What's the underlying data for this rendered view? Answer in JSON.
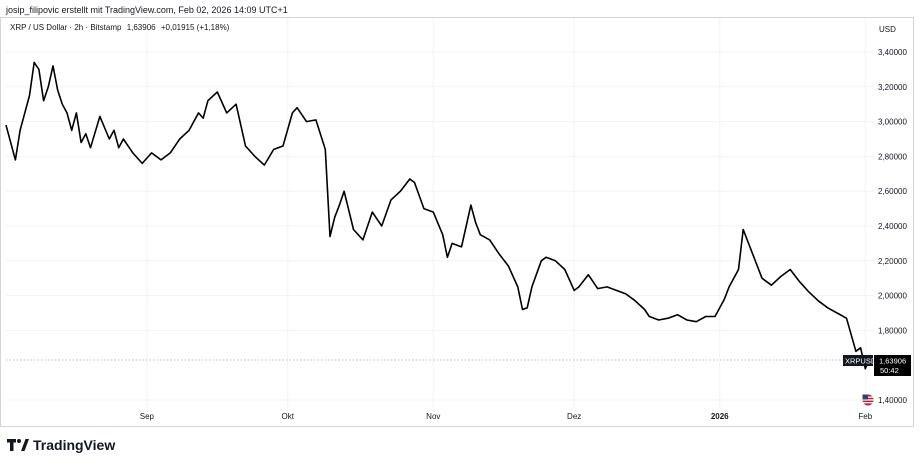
{
  "header": {
    "attribution": "josip_filipovic erstellt mit TradingView.com, Feb 02, 2026 14:09 UTC+1"
  },
  "legend": {
    "symbol": "XRP / US Dollar · 2h · Bitstamp",
    "last": "1,63906",
    "change": "+0,01915 (+1,18%)"
  },
  "price_axis": {
    "currency": "USD"
  },
  "price_tag": {
    "symbol": "XRPUSD",
    "price": "1,63906",
    "countdown": "50:42"
  },
  "branding": {
    "name": "TradingView"
  },
  "colors": {
    "line": "#000000",
    "tag_bg": "#131722",
    "grid": "#f0f3fa",
    "text": "#131722"
  },
  "chart_data": {
    "type": "line",
    "title": "",
    "xlabel": "",
    "ylabel": "",
    "ylim": [
      1.4,
      3.5
    ],
    "y_ticks": [
      "1,40000",
      "1,80000",
      "2,00000",
      "2,20000",
      "2,40000",
      "2,60000",
      "2,80000",
      "3,00000",
      "3,20000",
      "3,40000"
    ],
    "y_tick_values": [
      1.4,
      1.8,
      2.0,
      2.2,
      2.4,
      2.6,
      2.8,
      3.0,
      3.2,
      3.4
    ],
    "x_ticks": [
      "Sep",
      "Okt",
      "Nov",
      "Dez",
      "2026",
      "Feb"
    ],
    "x_tick_dates": [
      "2025-09-01",
      "2025-10-01",
      "2025-11-01",
      "2025-12-01",
      "2026-01-01",
      "2026-02-01"
    ],
    "grid": true,
    "series": [
      {
        "x": [
          "2025-08-02",
          "2025-08-04",
          "2025-08-05",
          "2025-08-06",
          "2025-08-07",
          "2025-08-08",
          "2025-08-09",
          "2025-08-10",
          "2025-08-11",
          "2025-08-12",
          "2025-08-13",
          "2025-08-14",
          "2025-08-15",
          "2025-08-16",
          "2025-08-17",
          "2025-08-18",
          "2025-08-19",
          "2025-08-20",
          "2025-08-22",
          "2025-08-24",
          "2025-08-25",
          "2025-08-26",
          "2025-08-27",
          "2025-08-29",
          "2025-08-31",
          "2025-09-02",
          "2025-09-04",
          "2025-09-06",
          "2025-09-08",
          "2025-09-10",
          "2025-09-12",
          "2025-09-13",
          "2025-09-14",
          "2025-09-16",
          "2025-09-18",
          "2025-09-20",
          "2025-09-22",
          "2025-09-24",
          "2025-09-26",
          "2025-09-28",
          "2025-09-30",
          "2025-10-02",
          "2025-10-03",
          "2025-10-05",
          "2025-10-07",
          "2025-10-09",
          "2025-10-10",
          "2025-10-11",
          "2025-10-12",
          "2025-10-13",
          "2025-10-15",
          "2025-10-17",
          "2025-10-19",
          "2025-10-21",
          "2025-10-23",
          "2025-10-25",
          "2025-10-27",
          "2025-10-28",
          "2025-10-30",
          "2025-11-01",
          "2025-11-03",
          "2025-11-04",
          "2025-11-05",
          "2025-11-07",
          "2025-11-09",
          "2025-11-10",
          "2025-11-11",
          "2025-11-13",
          "2025-11-15",
          "2025-11-17",
          "2025-11-19",
          "2025-11-20",
          "2025-11-21",
          "2025-11-22",
          "2025-11-24",
          "2025-11-25",
          "2025-11-27",
          "2025-11-29",
          "2025-12-01",
          "2025-12-02",
          "2025-12-04",
          "2025-12-06",
          "2025-12-08",
          "2025-12-10",
          "2025-12-12",
          "2025-12-14",
          "2025-12-16",
          "2025-12-17",
          "2025-12-19",
          "2025-12-21",
          "2025-12-23",
          "2025-12-25",
          "2025-12-27",
          "2025-12-29",
          "2025-12-31",
          "2026-01-02",
          "2026-01-03",
          "2026-01-05",
          "2026-01-06",
          "2026-01-08",
          "2026-01-10",
          "2026-01-12",
          "2026-01-14",
          "2026-01-16",
          "2026-01-18",
          "2026-01-20",
          "2026-01-22",
          "2026-01-24",
          "2026-01-26",
          "2026-01-28",
          "2026-01-30",
          "2026-01-31",
          "2026-02-01",
          "2026-02-02"
        ],
        "values": [
          2.98,
          2.78,
          2.95,
          3.05,
          3.15,
          3.34,
          3.3,
          3.12,
          3.2,
          3.32,
          3.18,
          3.1,
          3.05,
          2.95,
          3.05,
          2.88,
          2.93,
          2.85,
          3.03,
          2.9,
          2.95,
          2.85,
          2.9,
          2.82,
          2.76,
          2.82,
          2.78,
          2.82,
          2.9,
          2.95,
          3.05,
          3.02,
          3.12,
          3.17,
          3.05,
          3.1,
          2.86,
          2.8,
          2.75,
          2.84,
          2.86,
          3.05,
          3.08,
          3.0,
          3.01,
          2.84,
          2.34,
          2.45,
          2.52,
          2.6,
          2.38,
          2.32,
          2.48,
          2.4,
          2.55,
          2.6,
          2.67,
          2.65,
          2.5,
          2.48,
          2.35,
          2.22,
          2.3,
          2.28,
          2.52,
          2.42,
          2.35,
          2.32,
          2.24,
          2.17,
          2.05,
          1.92,
          1.93,
          2.05,
          2.2,
          2.22,
          2.2,
          2.15,
          2.03,
          2.05,
          2.12,
          2.04,
          2.05,
          2.03,
          2.01,
          1.97,
          1.92,
          1.88,
          1.86,
          1.87,
          1.89,
          1.86,
          1.85,
          1.88,
          1.88,
          1.98,
          2.05,
          2.15,
          2.38,
          2.24,
          2.1,
          2.06,
          2.11,
          2.15,
          2.08,
          2.02,
          1.97,
          1.93,
          1.9,
          1.87,
          1.68,
          1.7,
          1.58,
          1.64
        ]
      }
    ]
  }
}
